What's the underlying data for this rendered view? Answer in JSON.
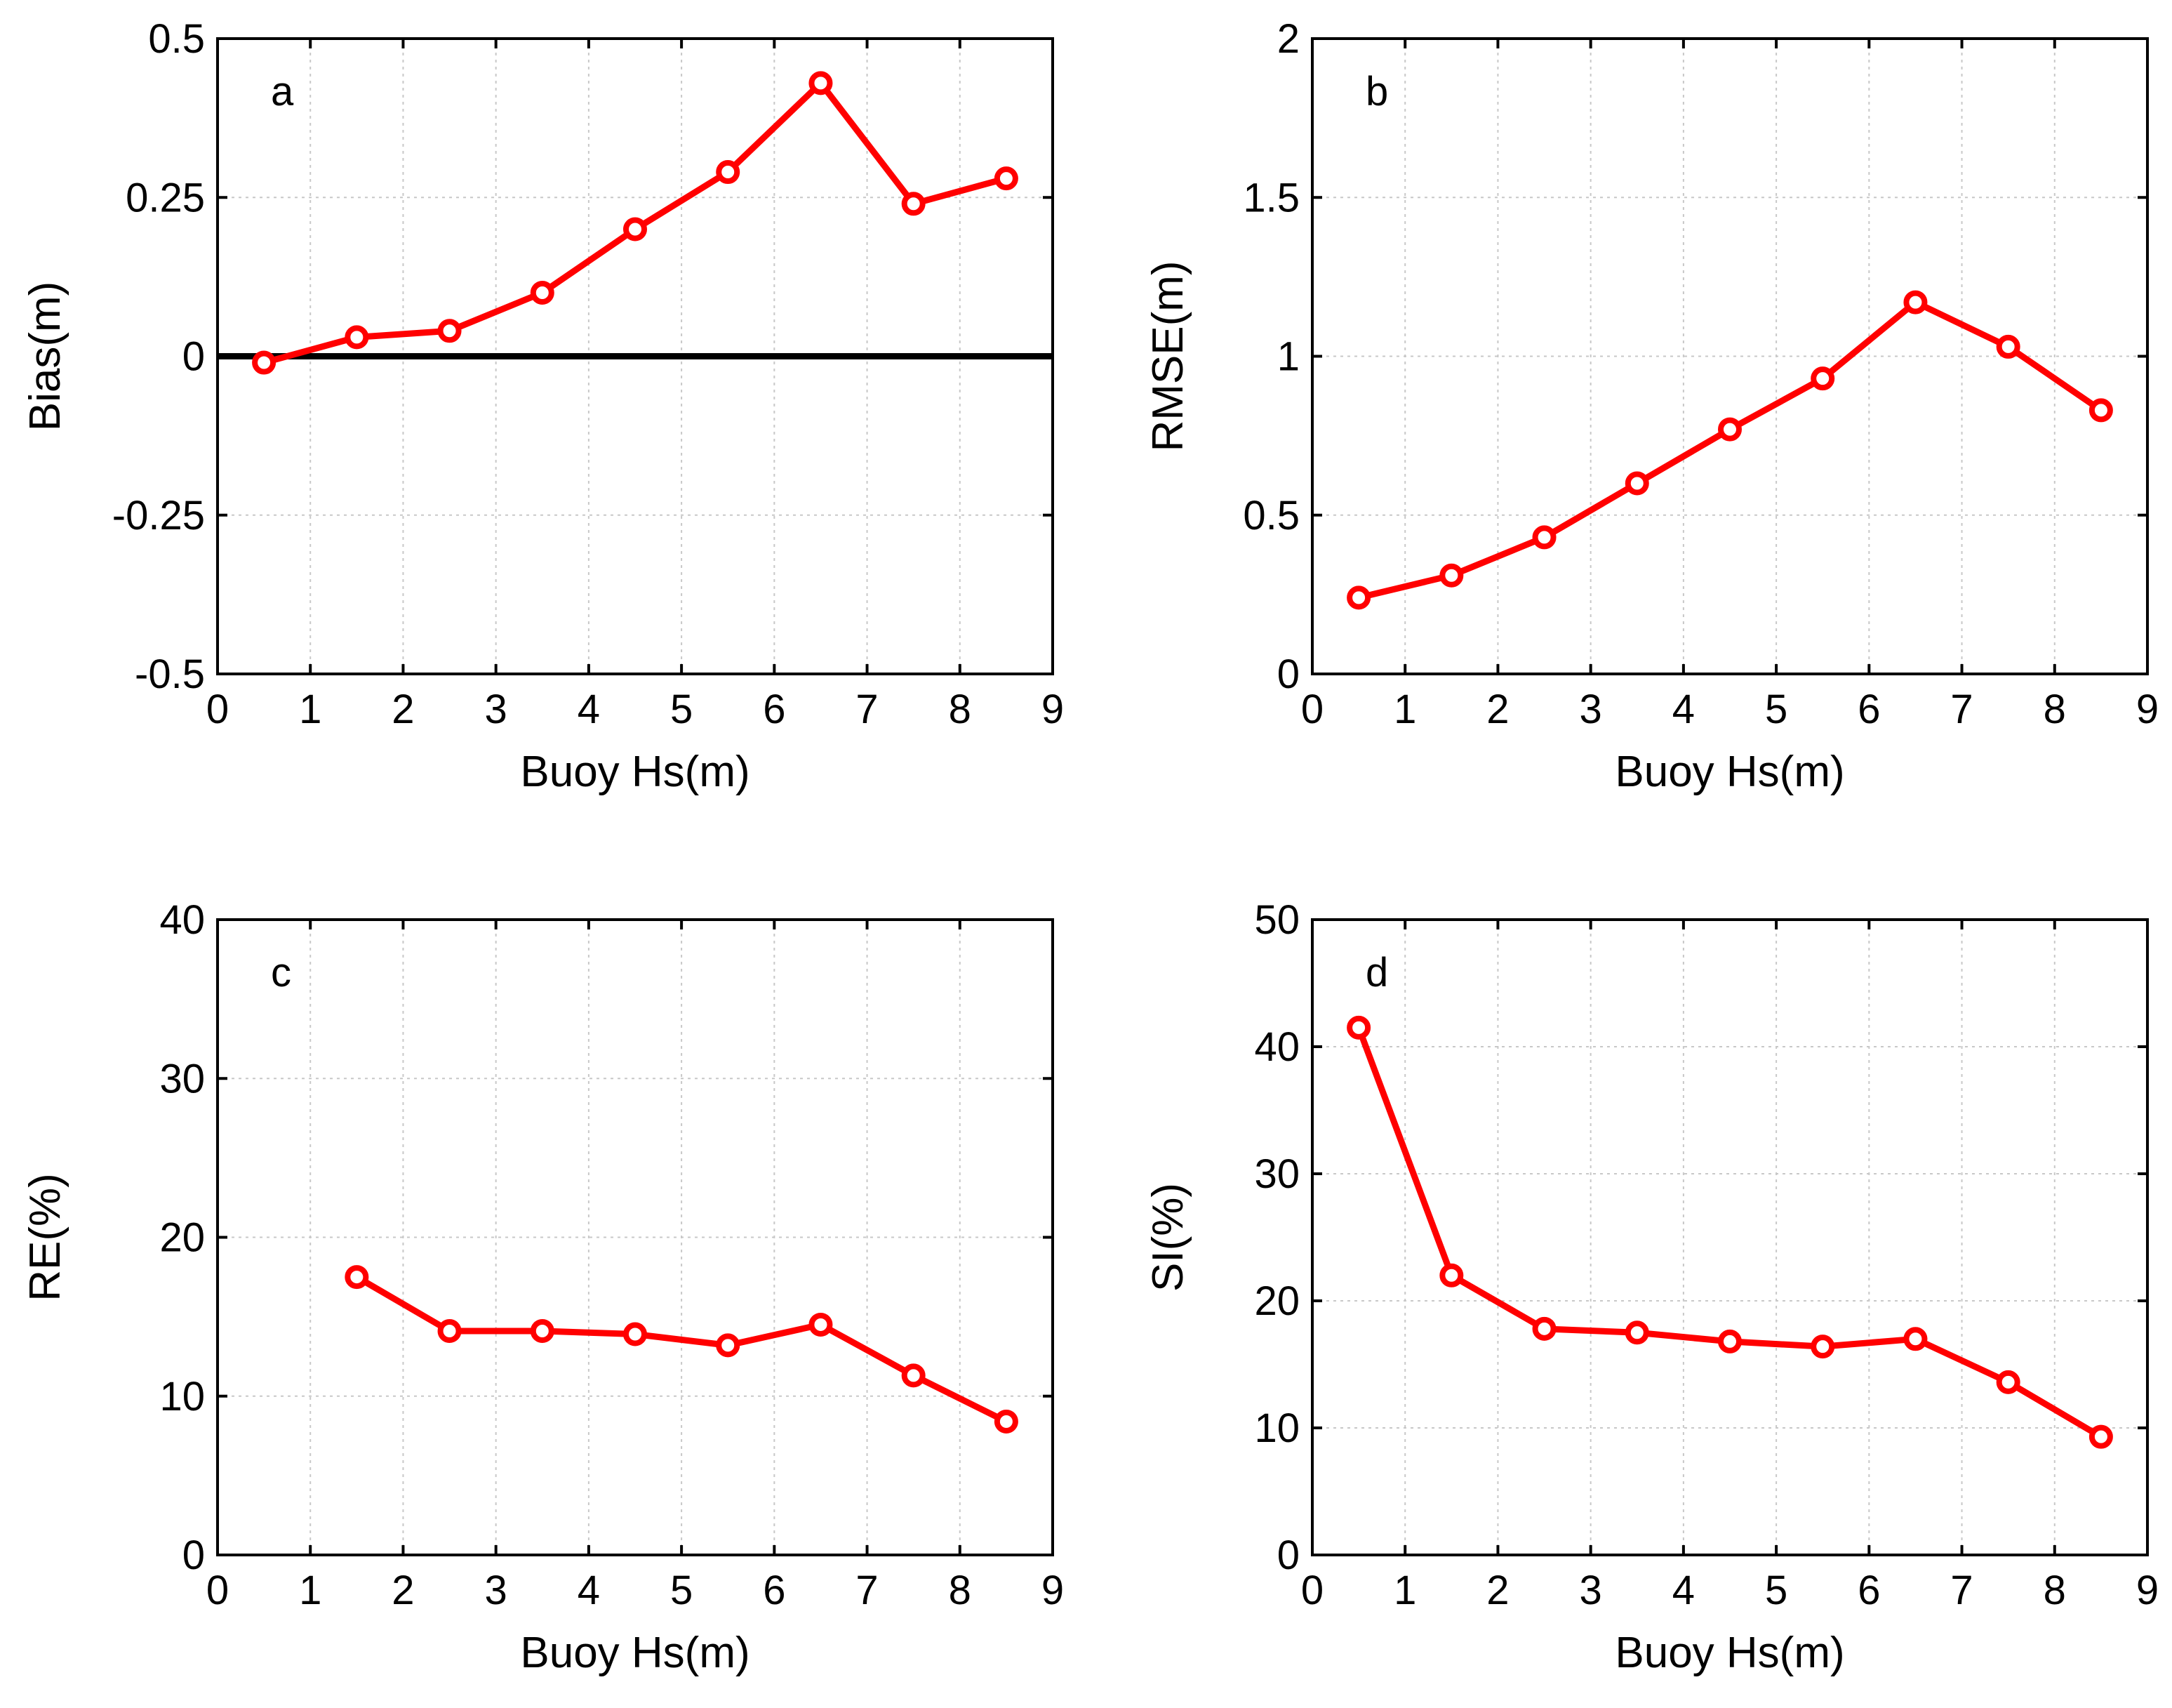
{
  "style": {
    "series_color": "#ff0000",
    "axis_color": "#000000",
    "grid_color": "#c8c8c8"
  },
  "chart_data": [
    {
      "type": "line",
      "panel_label": "a",
      "xlabel": "Buoy Hs(m)",
      "ylabel": "Bias(m)",
      "xlim": [
        0,
        9
      ],
      "ylim": [
        -0.5,
        0.5
      ],
      "xticks": [
        "0",
        "1",
        "2",
        "3",
        "4",
        "5",
        "6",
        "7",
        "8",
        "9"
      ],
      "yticks": [
        "-0.5",
        "-0.25",
        "0",
        "0.25",
        "0.5"
      ],
      "x": [
        0.5,
        1.5,
        2.5,
        3.5,
        4.5,
        5.5,
        6.5,
        7.5,
        8.5
      ],
      "values": [
        -0.01,
        0.03,
        0.04,
        0.1,
        0.2,
        0.29,
        0.43,
        0.24,
        0.28
      ],
      "reference_line": 0,
      "grid": true
    },
    {
      "type": "line",
      "panel_label": "b",
      "xlabel": "Buoy Hs(m)",
      "ylabel": "RMSE(m)",
      "xlim": [
        0,
        9
      ],
      "ylim": [
        0,
        2
      ],
      "xticks": [
        "0",
        "1",
        "2",
        "3",
        "4",
        "5",
        "6",
        "7",
        "8",
        "9"
      ],
      "yticks": [
        "0",
        "0.5",
        "1",
        "1.5",
        "2"
      ],
      "x": [
        0.5,
        1.5,
        2.5,
        3.5,
        4.5,
        5.5,
        6.5,
        7.5,
        8.5
      ],
      "values": [
        0.24,
        0.31,
        0.43,
        0.6,
        0.77,
        0.93,
        1.17,
        1.03,
        0.83
      ],
      "grid": true
    },
    {
      "type": "line",
      "panel_label": "c",
      "xlabel": "Buoy Hs(m)",
      "ylabel": "RE(%)",
      "xlim": [
        0,
        9
      ],
      "ylim": [
        0,
        40
      ],
      "xticks": [
        "0",
        "1",
        "2",
        "3",
        "4",
        "5",
        "6",
        "7",
        "8",
        "9"
      ],
      "yticks": [
        "0",
        "10",
        "20",
        "30",
        "40"
      ],
      "x": [
        1.5,
        2.5,
        3.5,
        4.5,
        5.5,
        6.5,
        7.5,
        8.5
      ],
      "values": [
        17.5,
        14.1,
        14.1,
        13.9,
        13.2,
        14.5,
        11.3,
        8.4
      ],
      "grid": true
    },
    {
      "type": "line",
      "panel_label": "d",
      "xlabel": "Buoy Hs(m)",
      "ylabel": "SI(%)",
      "xlim": [
        0,
        9
      ],
      "ylim": [
        0,
        50
      ],
      "xticks": [
        "0",
        "1",
        "2",
        "3",
        "4",
        "5",
        "6",
        "7",
        "8",
        "9"
      ],
      "yticks": [
        "0",
        "10",
        "20",
        "30",
        "40",
        "50"
      ],
      "x": [
        0.5,
        1.5,
        2.5,
        3.5,
        4.5,
        5.5,
        6.5,
        7.5,
        8.5
      ],
      "values": [
        41.5,
        22.0,
        17.8,
        17.5,
        16.8,
        16.4,
        17.0,
        13.6,
        9.3
      ],
      "grid": true
    }
  ]
}
